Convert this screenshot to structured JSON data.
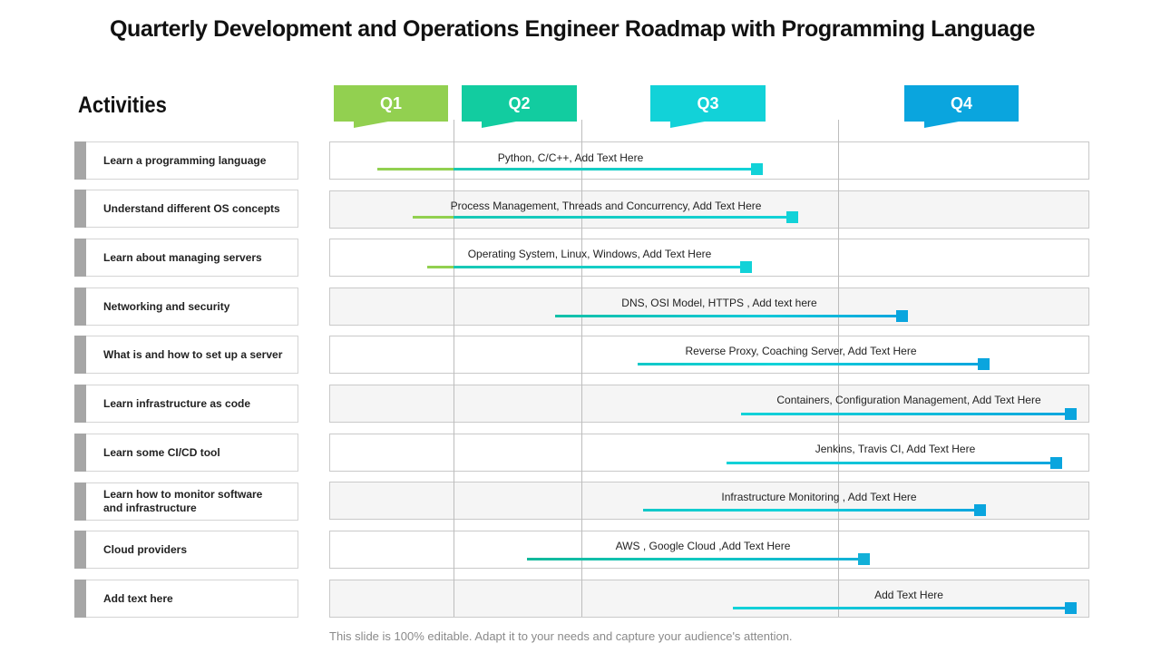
{
  "title": "Quarterly Development and Operations Engineer Roadmap with Programming Language",
  "activities_heading": "Activities",
  "quarters": [
    {
      "label": "Q1",
      "color": "#92d050"
    },
    {
      "label": "Q2",
      "color": "#12cca0"
    },
    {
      "label": "Q3",
      "color": "#12d2d8"
    },
    {
      "label": "Q4",
      "color": "#0aa5de"
    }
  ],
  "rows": [
    {
      "activity": "Learn a programming language",
      "detail": "Python, C/C++,  Add Text Here"
    },
    {
      "activity": "Understand different OS concepts",
      "detail": "Process Management,  Threads and Concurrency,  Add Text Here"
    },
    {
      "activity": "Learn about managing servers",
      "detail": "Operating System,  Linux, Windows, Add Text Here"
    },
    {
      "activity": "Networking and security",
      "detail": "DNS,  OSI Model,  HTTPS , Add text here"
    },
    {
      "activity": "What is and how to set up a server",
      "detail": "Reverse  Proxy, Coaching Server,  Add Text Here"
    },
    {
      "activity": "Learn infrastructure  as code",
      "detail": "Containers, Configuration Management,  Add Text Here"
    },
    {
      "activity": "Learn some CI/CD tool",
      "detail": "Jenkins, Travis CI,  Add Text Here"
    },
    {
      "activity": "Learn how to monitor software\nand infrastructure",
      "detail": "Infrastructure Monitoring , Add Text Here"
    },
    {
      "activity": "Cloud providers",
      "detail": "AWS , Google Cloud ,Add Text Here"
    },
    {
      "activity": "Add text here",
      "detail": "Add Text Here"
    }
  ],
  "footer": "This slide is 100% editable. Adapt it to your needs and capture your audience's attention."
}
